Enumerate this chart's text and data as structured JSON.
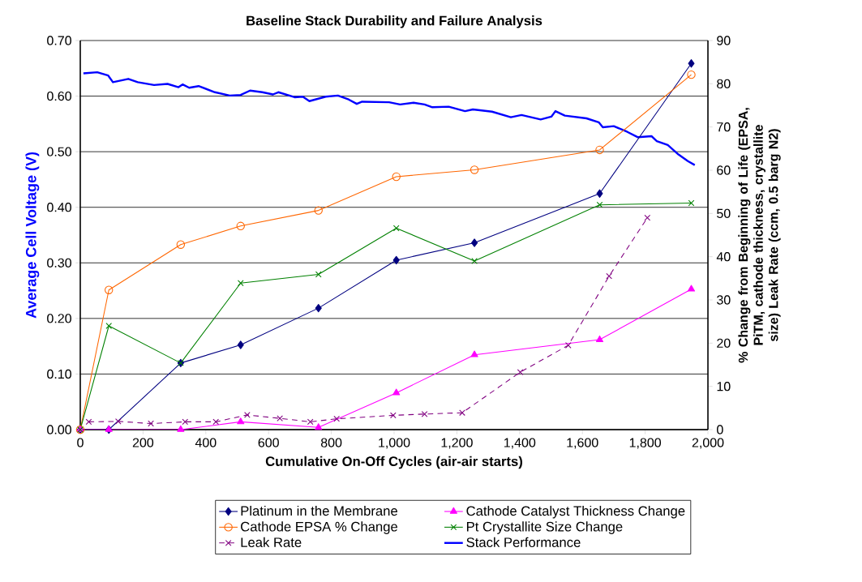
{
  "chart_data": {
    "type": "line",
    "title": "Baseline Stack Durability and Failure Analysis",
    "xlabel": "Cumulative On-Off Cycles (air-air starts)",
    "ylabel": "Average Cell Voltage (V)",
    "y2label": "% Change from Beginning of Life (EPSA, PiTM, cathode thickness, crystallite size) Leak Rate (ccm, 0.5 barg N2)",
    "xlim": [
      0,
      2000
    ],
    "xticks": [
      0,
      {
        "value": 200,
        "label": "200"
      },
      {
        "value": 400,
        "label": "400"
      },
      {
        "value": 600,
        "label": "600"
      },
      {
        "value": 800,
        "label": "800"
      },
      {
        "value": 1000,
        "label": "1,000"
      },
      {
        "value": 1200,
        "label": "1,200"
      },
      {
        "value": 1400,
        "label": "1,400"
      },
      {
        "value": 1600,
        "label": "1,600"
      },
      {
        "value": 1800,
        "label": "1,800"
      },
      {
        "value": 2000,
        "label": "2,000"
      }
    ],
    "ylim": [
      0,
      0.7
    ],
    "yticks": [
      {
        "value": 0,
        "label": "0.00"
      },
      {
        "value": 0.1,
        "label": "0.10"
      },
      {
        "value": 0.2,
        "label": "0.20"
      },
      {
        "value": 0.3,
        "label": "0.30"
      },
      {
        "value": 0.4,
        "label": "0.40"
      },
      {
        "value": 0.5,
        "label": "0.50"
      },
      {
        "value": 0.6,
        "label": "0.60"
      },
      {
        "value": 0.7,
        "label": "0.70"
      }
    ],
    "y2lim": [
      0,
      90
    ],
    "y2ticks": [
      0,
      10,
      20,
      30,
      40,
      50,
      60,
      70,
      80,
      90
    ],
    "grid": "y",
    "legend": "bottom",
    "series": [
      {
        "name": "Platinum in the Membrane",
        "color": "#000080",
        "axis": "y2",
        "marker": "diamond",
        "x": [
          0,
          91,
          320,
          511,
          759,
          1007,
          1256,
          1655,
          1947
        ],
        "values": [
          0,
          0,
          15.4,
          19.6,
          28.1,
          39.2,
          43.2,
          54.6,
          84.7
        ]
      },
      {
        "name": "Cathode Catalyst Thickness Change",
        "color": "#ff00ff",
        "axis": "y2",
        "marker": "triangle",
        "x": [
          0,
          91,
          320,
          511,
          759,
          1007,
          1256,
          1655,
          1947
        ],
        "values": [
          0,
          0,
          0,
          1.8,
          0.5,
          8.5,
          17.3,
          20.8,
          32.5
        ]
      },
      {
        "name": "Cathode EPSA % Change",
        "color": "#ff6600",
        "axis": "y2",
        "marker": "circle",
        "x": [
          0,
          91,
          320,
          511,
          759,
          1007,
          1256,
          1655,
          1947
        ],
        "values": [
          0,
          32.3,
          42.8,
          47.1,
          50.7,
          58.5,
          60.1,
          64.7,
          82.1
        ]
      },
      {
        "name": "Pt Crystallite Size Change",
        "color": "#008000",
        "axis": "y2",
        "marker": "cross",
        "x": [
          0,
          91,
          320,
          511,
          759,
          1007,
          1256,
          1655,
          1947
        ],
        "values": [
          0,
          24.0,
          15.4,
          33.9,
          35.9,
          46.6,
          39.0,
          52.0,
          52.4
        ]
      },
      {
        "name": "Leak Rate",
        "color": "#800080",
        "axis": "y2",
        "marker": "cross",
        "line_style": "dashed",
        "x": [
          27,
          121,
          225,
          334,
          432,
          532,
          636,
          733,
          817,
          997,
          1097,
          1217,
          1402,
          1555,
          1685,
          1807
        ],
        "values": [
          1.8,
          1.9,
          1.4,
          1.8,
          1.8,
          3.4,
          2.6,
          1.8,
          2.5,
          3.3,
          3.6,
          3.9,
          13.3,
          19.5,
          35.5,
          49.0
        ]
      },
      {
        "name": "Stack Performance",
        "color": "#0000ff",
        "axis": "y",
        "marker": "none",
        "x": [
          10,
          54,
          89,
          104,
          153,
          183,
          235,
          278,
          313,
          326,
          347,
          377,
          429,
          476,
          511,
          541,
          580,
          614,
          631,
          683,
          709,
          730,
          782,
          821,
          855,
          881,
          898,
          984,
          1019,
          1062,
          1097,
          1122,
          1174,
          1226,
          1251,
          1312,
          1372,
          1406,
          1467,
          1501,
          1514,
          1544,
          1613,
          1652,
          1665,
          1700,
          1742,
          1777,
          1820,
          1837,
          1872,
          1906,
          1936,
          1958
        ],
        "values": [
          0.641,
          0.643,
          0.637,
          0.625,
          0.631,
          0.625,
          0.62,
          0.622,
          0.616,
          0.621,
          0.615,
          0.618,
          0.607,
          0.601,
          0.602,
          0.61,
          0.607,
          0.603,
          0.607,
          0.598,
          0.599,
          0.591,
          0.599,
          0.601,
          0.594,
          0.586,
          0.59,
          0.589,
          0.585,
          0.588,
          0.585,
          0.58,
          0.581,
          0.573,
          0.576,
          0.572,
          0.562,
          0.566,
          0.558,
          0.563,
          0.573,
          0.565,
          0.56,
          0.553,
          0.544,
          0.546,
          0.536,
          0.526,
          0.528,
          0.519,
          0.512,
          0.495,
          0.483,
          0.476
        ]
      }
    ]
  }
}
